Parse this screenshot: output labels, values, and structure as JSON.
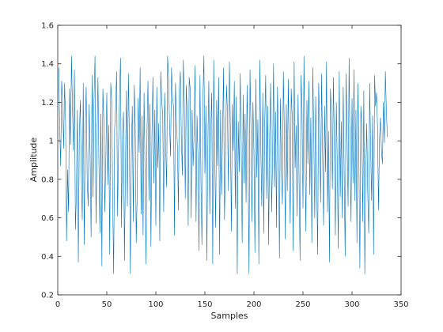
{
  "chart_data": {
    "type": "line",
    "title": "",
    "xlabel": "Samples",
    "ylabel": "Amplitude",
    "xlim": [
      0,
      350
    ],
    "ylim": [
      0.2,
      1.6
    ],
    "xticks": [
      0,
      50,
      100,
      150,
      200,
      250,
      300,
      350
    ],
    "yticks": [
      0.2,
      0.4,
      0.6,
      0.8,
      1,
      1.2,
      1.4,
      1.6
    ],
    "xtick_labels": [
      "0",
      "50",
      "100",
      "150",
      "200",
      "250",
      "300",
      "350"
    ],
    "ytick_labels": [
      "0.2",
      "0.4",
      "0.6",
      "0.8",
      "1",
      "1.2",
      "1.4",
      "1.6"
    ],
    "grid": false,
    "box": true,
    "series": [
      {
        "color": "#0072bd",
        "x_start": 1,
        "x_step": 1,
        "y": [
          1.38,
          1.06,
          0.87,
          1.31,
          1.2,
          0.96,
          1.3,
          1.1,
          0.48,
          0.85,
          0.63,
          1.27,
          0.98,
          1.44,
          1.18,
          0.95,
          1.37,
          0.54,
          0.72,
          1.16,
          0.37,
          1.03,
          1.21,
          0.84,
          0.59,
          1.3,
          0.46,
          1.05,
          1.28,
          0.8,
          0.66,
          1.19,
          0.93,
          0.5,
          1.34,
          0.71,
          1.22,
          1.44,
          0.57,
          0.99,
          1.33,
          0.88,
          0.52,
          1.14,
          0.35,
          1.27,
          1.11,
          0.63,
          0.9,
          1.25,
          0.77,
          1.08,
          0.41,
          1.3,
          1.21,
          0.69,
          0.31,
          1.06,
          1.17,
          1.36,
          0.61,
          0.97,
          1.24,
          1.43,
          0.55,
          1.02,
          1.15,
          0.38,
          0.85,
          1.26,
          0.66,
          1.35,
          1.04,
          0.31,
          0.93,
          1.18,
          0.58,
          1.29,
          1.08,
          0.47,
          0.73,
          1.22,
          0.94,
          1.38,
          0.62,
          1.13,
          0.51,
          1.25,
          0.83,
          0.36,
          1.05,
          1.31,
          0.69,
          1.19,
          0.45,
          1.02,
          1.33,
          0.78,
          1.16,
          0.56,
          1.28,
          0.86,
          1.09,
          0.48,
          1.36,
          1.21,
          1.13,
          0.63,
          1.25,
          0.97,
          0.76,
          1.44,
          1.32,
          1.08,
          0.92,
          1.38,
          1.23,
          1.18,
          0.51,
          1.3,
          1.1,
          0.97,
          0.64,
          1.27,
          1.36,
          1.02,
          0.82,
          1.42,
          1.2,
          0.7,
          1.29,
          1.12,
          0.56,
          1.33,
          1.27,
          0.6,
          1.16,
          0.87,
          1.04,
          1.39,
          0.58,
          1.13,
          0.91,
          0.43,
          1.34,
          0.78,
          0.46,
          1.22,
          1.44,
          0.83,
          1.18,
          0.38,
          0.97,
          1.31,
          0.62,
          1.06,
          1.25,
          0.36,
          1.42,
          0.94,
          0.55,
          1.21,
          0.87,
          1.33,
          0.41,
          1.16,
          0.72,
          1.02,
          1.38,
          0.59,
          0.91,
          1.29,
          1.15,
          0.74,
          1.41,
          1.07,
          0.53,
          1.19,
          0.95,
          1.31,
          0.65,
          1.23,
          0.31,
          1.1,
          0.84,
          1.35,
          1.0,
          0.47,
          1.24,
          0.78,
          1.14,
          0.68,
          1.29,
          0.9,
          0.31,
          1.37,
          1.06,
          0.58,
          1.2,
          0.94,
          0.42,
          1.32,
          0.81,
          1.11,
          0.36,
          1.42,
          0.97,
          0.66,
          1.25,
          0.52,
          1.09,
          1.34,
          0.7,
          1.18,
          0.46,
          1.01,
          1.3,
          0.63,
          0.89,
          1.4,
          0.76,
          1.15,
          0.55,
          1.28,
          0.99,
          0.39,
          1.22,
          0.85,
          0.67,
          1.36,
          1.05,
          0.49,
          1.19,
          0.74,
          1.32,
          0.92,
          0.57,
          1.27,
          1.13,
          0.43,
          1.41,
          0.86,
          1.08,
          0.61,
          1.24,
          0.8,
          0.38,
          1.34,
          1.17,
          0.65,
          1.44,
          0.96,
          0.53,
          1.21,
          0.88,
          1.31,
          0.72,
          1.12,
          0.47,
          1.38,
          1.03,
          0.6,
          1.23,
          0.79,
          0.41,
          1.3,
          1.07,
          0.68,
          1.35,
          0.93,
          0.56,
          1.18,
          0.84,
          1.41,
          0.63,
          1.05,
          0.37,
          1.27,
          1.14,
          0.75,
          1.33,
          0.98,
          0.51,
          1.2,
          0.87,
          0.44,
          1.36,
          0.71,
          1.1,
          0.6,
          1.28,
          0.83,
          0.4,
          1.35,
          1.01,
          0.66,
          1.43,
          0.94,
          0.58,
          1.22,
          0.78,
          1.37,
          0.69,
          1.16,
          0.47,
          1.3,
          0.89,
          0.34,
          1.18,
          1.06,
          0.58,
          1.26,
          0.31,
          0.82,
          1.09,
          0.74,
          0.52,
          1.3,
          0.96,
          0.69,
          1.13,
          0.41,
          1.34,
          1.18,
          1.25,
          1.07,
          0.64,
          1.01,
          1.12,
          0.95,
          0.88,
          1.2,
          0.99,
          1.36,
          1.16,
          1.02
        ]
      }
    ]
  }
}
